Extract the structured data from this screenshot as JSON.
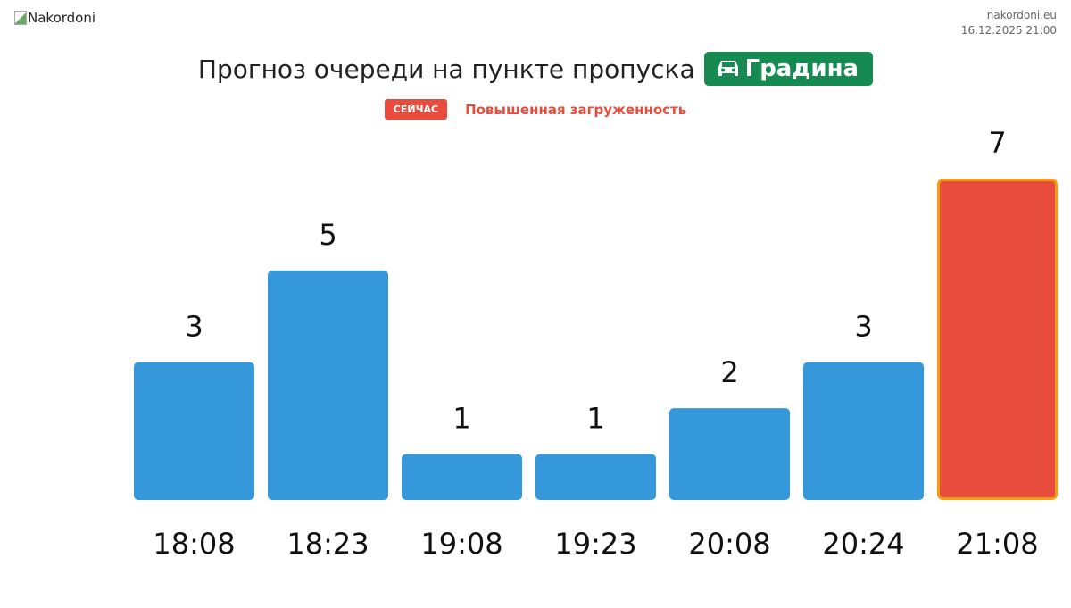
{
  "header": {
    "logo_alt": "Nakordoni",
    "site": "nakordoni.eu",
    "datetime": "16.12.2025 21:00"
  },
  "title": {
    "text": "Прогноз очереди на пункте пропуска",
    "checkpoint": "Градина",
    "checkpoint_icon": "car-icon",
    "checkpoint_color": "#178a52"
  },
  "status": {
    "now_label": "СЕЙЧАС",
    "level_text": "Повышенная загруженность",
    "color": "#e74c3c"
  },
  "chart_data": {
    "type": "bar",
    "categories": [
      "18:08",
      "18:23",
      "19:08",
      "19:23",
      "20:08",
      "20:24",
      "21:08"
    ],
    "values": [
      3,
      5,
      1,
      1,
      2,
      3,
      7
    ],
    "ylim": [
      0,
      7
    ],
    "grid": false,
    "bar_color": "#3498db",
    "highlight_index": 6,
    "highlight_color": "#e74c3c",
    "highlight_border": "#f39c12"
  }
}
